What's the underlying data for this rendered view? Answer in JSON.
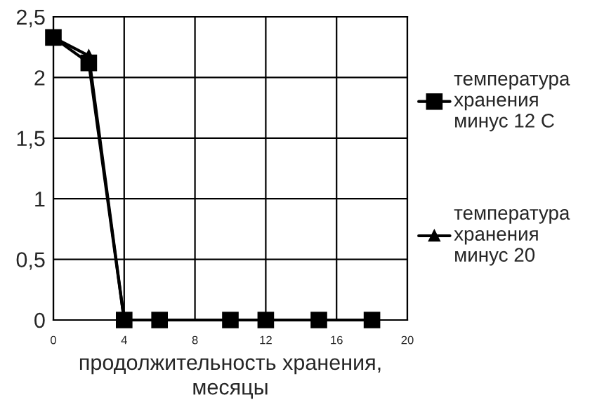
{
  "chart_data": {
    "type": "line",
    "xlabel": "продолжительность хранения,\nмесяцы",
    "x": [
      0,
      2,
      4,
      6,
      10,
      12,
      15,
      18
    ],
    "series": [
      {
        "name": "температура\nхранения\nминус 12 С",
        "color": "#000000",
        "marker": "square",
        "values": [
          2.33,
          2.12,
          0,
          0,
          0,
          0,
          0,
          0
        ]
      },
      {
        "name": "температура\nхранения\nминус 20",
        "color": "#000000",
        "marker": "triangle",
        "x": [
          0,
          2,
          4,
          6,
          10,
          12,
          15
        ],
        "values": [
          2.33,
          2.18,
          0,
          0,
          0,
          0,
          0
        ]
      }
    ],
    "xlim": [
      0,
      20
    ],
    "xticks": [
      0,
      4,
      8,
      12,
      16,
      20
    ],
    "ylim": [
      0,
      2.5
    ],
    "yticks": [
      {
        "value": 0,
        "label": "0"
      },
      {
        "value": 0.5,
        "label": "0,5"
      },
      {
        "value": 1,
        "label": "1"
      },
      {
        "value": 1.5,
        "label": "1,5"
      },
      {
        "value": 2,
        "label": "2"
      },
      {
        "value": 2.5,
        "label": "2,5"
      }
    ],
    "grid": true,
    "legend": "right",
    "line_style": "solid"
  }
}
